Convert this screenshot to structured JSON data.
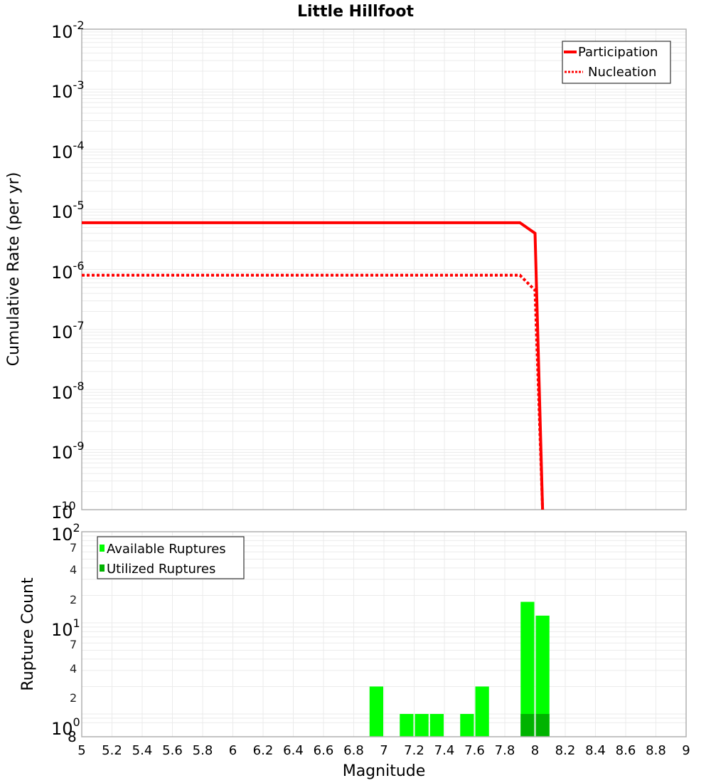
{
  "chart_data": [
    {
      "type": "line",
      "title": "Little Hillfoot",
      "xlabel": "Magnitude",
      "ylabel": "Cumulative Rate (per yr)",
      "yscale": "log",
      "ylim": [
        1e-10,
        0.01
      ],
      "xlim": [
        5,
        9
      ],
      "grid": true,
      "legend_position": "upper right",
      "y_tick_labels": [
        "10^-2",
        "10^-3",
        "10^-4",
        "10^-5",
        "10^-6",
        "10^-7",
        "10^-8",
        "10^-9",
        "10^-10"
      ],
      "series": [
        {
          "name": "Participation",
          "style": "solid",
          "color": "#ff0000",
          "x": [
            5.0,
            7.9,
            8.0,
            8.05
          ],
          "y": [
            6e-06,
            6e-06,
            4e-06,
            1e-10
          ]
        },
        {
          "name": "Nucleation",
          "style": "dotted",
          "color": "#ff0000",
          "x": [
            5.0,
            7.9,
            8.0,
            8.05
          ],
          "y": [
            8e-07,
            8e-07,
            4.5e-07,
            1e-10
          ]
        }
      ]
    },
    {
      "type": "bar",
      "xlabel": "Magnitude",
      "ylabel": "Rupture Count",
      "yscale": "log",
      "ylim": [
        0.8,
        100
      ],
      "xlim": [
        5,
        9
      ],
      "grid": true,
      "legend_position": "upper left",
      "x_tick_labels": [
        "5",
        "5.2",
        "5.4",
        "5.6",
        "5.8",
        "6",
        "6.2",
        "6.4",
        "6.6",
        "6.8",
        "7",
        "7.2",
        "7.4",
        "7.6",
        "7.8",
        "8",
        "8.2",
        "8.4",
        "8.6",
        "8.8",
        "9"
      ],
      "y_tick_labels_major": [
        "10^0",
        "10^1",
        "10^2"
      ],
      "y_tick_labels_minor": [
        "8",
        "2",
        "4",
        "7",
        "2",
        "4",
        "7"
      ],
      "bin_width": 0.1,
      "categories": [
        6.95,
        7.15,
        7.25,
        7.35,
        7.55,
        7.65,
        7.95,
        8.05
      ],
      "series": [
        {
          "name": "Available Ruptures",
          "color": "#00ff00",
          "values": [
            2,
            1,
            1,
            1,
            1,
            2,
            17,
            12
          ]
        },
        {
          "name": "Utilized Ruptures",
          "color": "#00b300",
          "values": [
            0,
            0,
            0,
            0,
            0,
            0,
            1,
            1
          ]
        }
      ]
    }
  ],
  "top": {
    "title": "Little Hillfoot",
    "ylabel": "Cumulative Rate (per yr)",
    "legend": {
      "participation": "Participation",
      "nucleation": "Nucleation"
    },
    "yticks": [
      {
        "base": "10",
        "exp": "-2"
      },
      {
        "base": "10",
        "exp": "-3"
      },
      {
        "base": "10",
        "exp": "-4"
      },
      {
        "base": "10",
        "exp": "-5"
      },
      {
        "base": "10",
        "exp": "-6"
      },
      {
        "base": "10",
        "exp": "-7"
      },
      {
        "base": "10",
        "exp": "-8"
      },
      {
        "base": "10",
        "exp": "-9"
      },
      {
        "base": "10",
        "exp": "-10"
      }
    ]
  },
  "bottom": {
    "ylabel": "Rupture Count",
    "xlabel": "Magnitude",
    "legend": {
      "available": "Available Ruptures",
      "utilized": "Utilized Ruptures"
    },
    "xticks": [
      "5",
      "5.2",
      "5.4",
      "5.6",
      "5.8",
      "6",
      "6.2",
      "6.4",
      "6.6",
      "6.8",
      "7",
      "7.2",
      "7.4",
      "7.6",
      "7.8",
      "8",
      "8.2",
      "8.4",
      "8.6",
      "8.8",
      "9"
    ],
    "major": [
      {
        "base": "10",
        "exp": "2"
      },
      {
        "base": "10",
        "exp": "1"
      },
      {
        "base": "10",
        "exp": "0"
      }
    ],
    "minor": [
      "7",
      "4",
      "2",
      "7",
      "4",
      "2",
      "8"
    ]
  },
  "colors": {
    "line": "#ff0000",
    "available": "#00ff00",
    "utilized": "#00b300",
    "grid": "#ebebeb",
    "frame": "#b0b0b0"
  }
}
